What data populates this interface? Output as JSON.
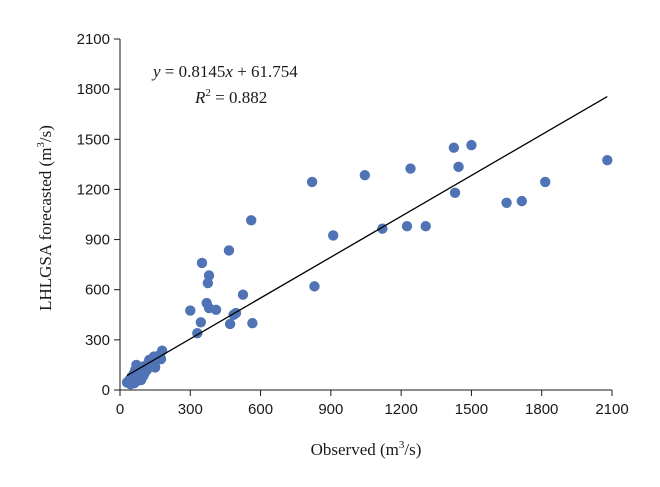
{
  "chart_data": {
    "type": "scatter",
    "xlabel_main": "Observed (m",
    "xlabel_sup": "3",
    "xlabel_tail": "/s)",
    "ylabel_main": "LHLGSA forecasted (m",
    "ylabel_sup": "3",
    "ylabel_tail": "/s)",
    "xlim": [
      0,
      2100
    ],
    "ylim": [
      0,
      2100
    ],
    "xticks": [
      0,
      300,
      600,
      900,
      1200,
      1500,
      1800,
      2100
    ],
    "yticks": [
      0,
      300,
      600,
      900,
      1200,
      1500,
      1800,
      2100
    ],
    "grid": false,
    "point_color": "#4f73b5",
    "line_color": "#000000",
    "annotation": {
      "equation_lhs": "y",
      "equation_mid": " = 0.8145",
      "equation_var": "x",
      "equation_rhs": " + 61.754",
      "r2_base": "R",
      "r2_sup": "2",
      "r2_rest": " = 0.882"
    },
    "trendline": {
      "slope": 0.8145,
      "intercept": 61.754,
      "x_range": [
        30,
        2080
      ]
    },
    "points": [
      {
        "x": 30,
        "y": 45
      },
      {
        "x": 40,
        "y": 60
      },
      {
        "x": 45,
        "y": 35
      },
      {
        "x": 50,
        "y": 80
      },
      {
        "x": 55,
        "y": 50
      },
      {
        "x": 60,
        "y": 100
      },
      {
        "x": 60,
        "y": 40
      },
      {
        "x": 65,
        "y": 120
      },
      {
        "x": 70,
        "y": 70
      },
      {
        "x": 70,
        "y": 150
      },
      {
        "x": 75,
        "y": 55
      },
      {
        "x": 80,
        "y": 90
      },
      {
        "x": 85,
        "y": 130
      },
      {
        "x": 90,
        "y": 60
      },
      {
        "x": 95,
        "y": 110
      },
      {
        "x": 100,
        "y": 140
      },
      {
        "x": 100,
        "y": 85
      },
      {
        "x": 105,
        "y": 100
      },
      {
        "x": 110,
        "y": 130
      },
      {
        "x": 115,
        "y": 120
      },
      {
        "x": 120,
        "y": 160
      },
      {
        "x": 125,
        "y": 180
      },
      {
        "x": 130,
        "y": 140
      },
      {
        "x": 140,
        "y": 190
      },
      {
        "x": 145,
        "y": 200
      },
      {
        "x": 150,
        "y": 135
      },
      {
        "x": 160,
        "y": 180
      },
      {
        "x": 170,
        "y": 210
      },
      {
        "x": 175,
        "y": 185
      },
      {
        "x": 180,
        "y": 235
      },
      {
        "x": 300,
        "y": 475
      },
      {
        "x": 330,
        "y": 340
      },
      {
        "x": 345,
        "y": 405
      },
      {
        "x": 350,
        "y": 760
      },
      {
        "x": 370,
        "y": 520
      },
      {
        "x": 375,
        "y": 640
      },
      {
        "x": 380,
        "y": 685
      },
      {
        "x": 380,
        "y": 490
      },
      {
        "x": 410,
        "y": 480
      },
      {
        "x": 465,
        "y": 835
      },
      {
        "x": 470,
        "y": 395
      },
      {
        "x": 485,
        "y": 450
      },
      {
        "x": 495,
        "y": 460
      },
      {
        "x": 525,
        "y": 570
      },
      {
        "x": 560,
        "y": 1015
      },
      {
        "x": 565,
        "y": 400
      },
      {
        "x": 820,
        "y": 1245
      },
      {
        "x": 830,
        "y": 620
      },
      {
        "x": 910,
        "y": 925
      },
      {
        "x": 1045,
        "y": 1285
      },
      {
        "x": 1120,
        "y": 965
      },
      {
        "x": 1225,
        "y": 980
      },
      {
        "x": 1240,
        "y": 1325
      },
      {
        "x": 1305,
        "y": 980
      },
      {
        "x": 1425,
        "y": 1450
      },
      {
        "x": 1430,
        "y": 1180
      },
      {
        "x": 1445,
        "y": 1335
      },
      {
        "x": 1500,
        "y": 1465
      },
      {
        "x": 1650,
        "y": 1120
      },
      {
        "x": 1715,
        "y": 1130
      },
      {
        "x": 1815,
        "y": 1245
      },
      {
        "x": 2080,
        "y": 1375
      }
    ]
  }
}
